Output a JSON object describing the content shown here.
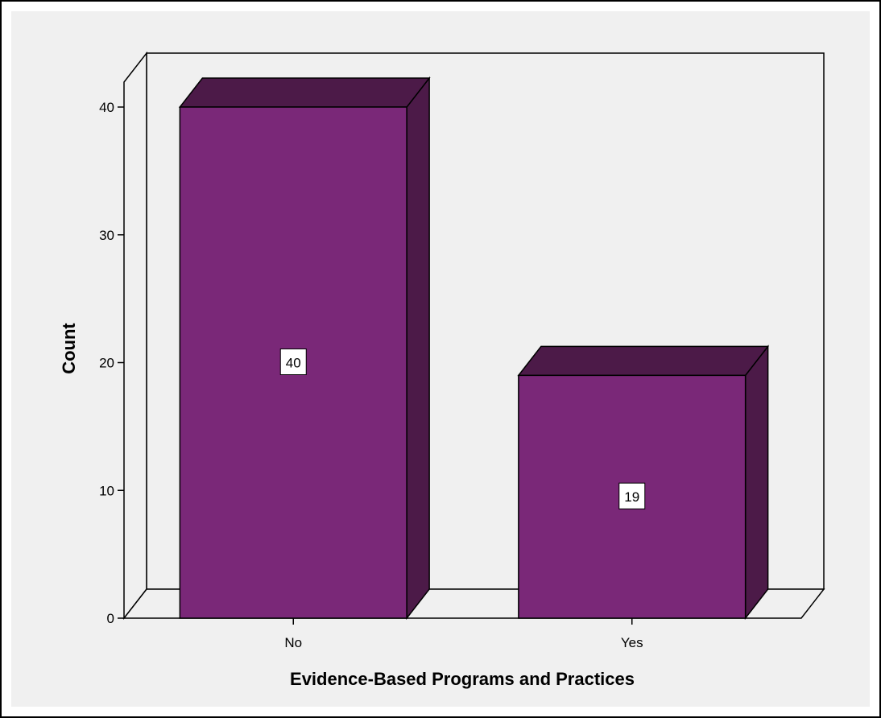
{
  "chart_data": {
    "type": "bar",
    "style": "3d",
    "title": "",
    "xlabel": "Evidence-Based Programs and Practices",
    "ylabel": "Count",
    "categories": [
      "No",
      "Yes"
    ],
    "values": [
      40,
      19
    ],
    "data_labels": [
      "40",
      "19"
    ],
    "yticks": [
      0,
      10,
      20,
      30,
      40
    ],
    "ytick_labels": [
      "0",
      "10",
      "20",
      "30",
      "40"
    ],
    "ylim": [
      0,
      40
    ],
    "grid": false,
    "legend": "none",
    "colors": {
      "bar_front": "#7a2878",
      "bar_side": "#4c1a48",
      "bar_top": "#4c1a48",
      "plot_background": "#f0f0f0",
      "page_background": "#ffffff",
      "line": "#000000"
    }
  }
}
